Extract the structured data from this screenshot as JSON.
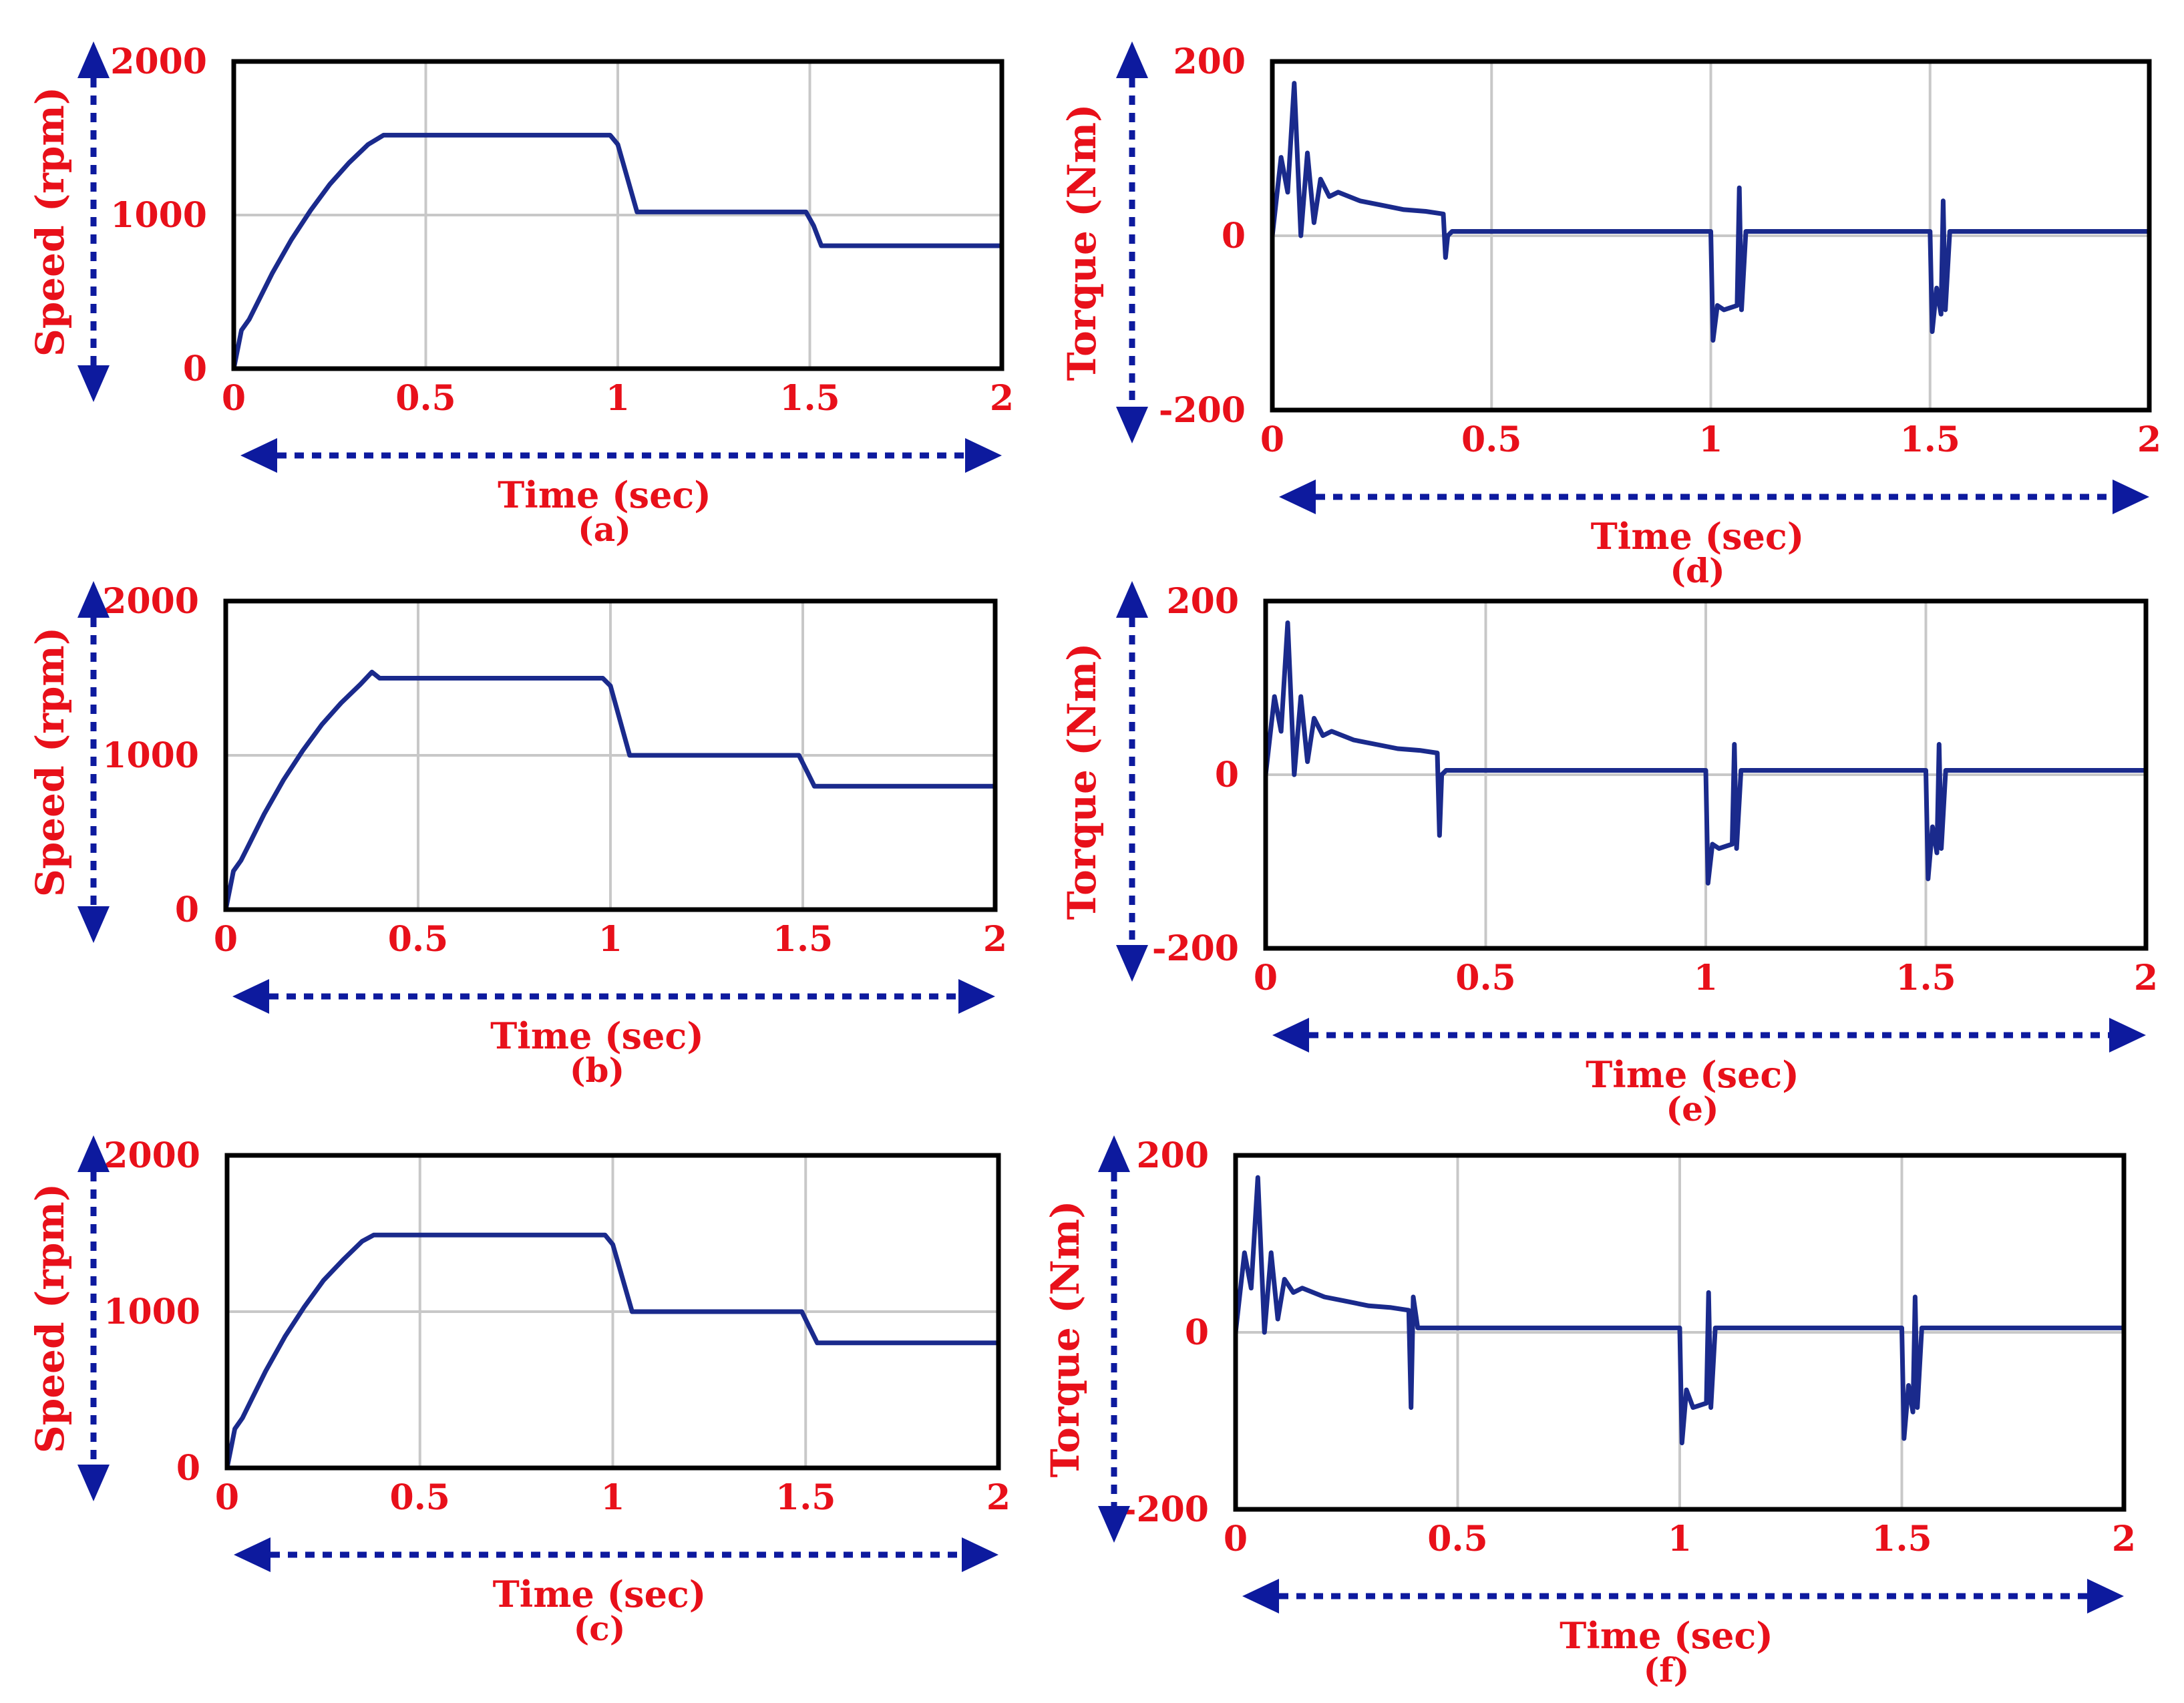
{
  "colors": {
    "trace": "#1a2a8c",
    "arrow": "#0d1a9e",
    "text": "#e8101a",
    "grid": "#c8c8c8",
    "frame": "#000000"
  },
  "chart_data": [
    {
      "panel": "(a)",
      "type": "line",
      "ylabel": "Speed (rpm)",
      "xlabel": "Time (sec)",
      "xlim": [
        0,
        2
      ],
      "ylim": [
        0,
        2000
      ],
      "xticks": [
        "0",
        "0.5",
        "1",
        "1.5",
        "2"
      ],
      "yticks": [
        "0",
        "1000",
        "2000"
      ],
      "series": [
        {
          "name": "speed",
          "x": [
            0,
            0.02,
            0.04,
            0.06,
            0.1,
            0.15,
            0.2,
            0.25,
            0.3,
            0.35,
            0.39,
            0.98,
            1.0,
            1.05,
            1.49,
            1.51,
            1.53,
            2.0
          ],
          "y": [
            0,
            250,
            320,
            420,
            620,
            840,
            1030,
            1200,
            1340,
            1460,
            1520,
            1520,
            1460,
            1020,
            1020,
            930,
            800,
            800
          ]
        }
      ]
    },
    {
      "panel": "(b)",
      "type": "line",
      "ylabel": "Speed (rpm)",
      "xlabel": "Time (sec)",
      "xlim": [
        0,
        2
      ],
      "ylim": [
        0,
        2000
      ],
      "xticks": [
        "0",
        "0.5",
        "1",
        "1.5",
        "2"
      ],
      "yticks": [
        "0",
        "1000",
        "2000"
      ],
      "series": [
        {
          "name": "speed",
          "x": [
            0,
            0.02,
            0.04,
            0.06,
            0.1,
            0.15,
            0.2,
            0.25,
            0.3,
            0.35,
            0.38,
            0.4,
            0.98,
            1.0,
            1.05,
            1.49,
            1.51,
            1.53,
            2.0
          ],
          "y": [
            0,
            250,
            320,
            420,
            620,
            840,
            1030,
            1200,
            1340,
            1460,
            1540,
            1500,
            1500,
            1450,
            1000,
            1000,
            900,
            800,
            800
          ]
        }
      ]
    },
    {
      "panel": "(c)",
      "type": "line",
      "ylabel": "Speed (rpm)",
      "xlabel": "Time (sec)",
      "xlim": [
        0,
        2
      ],
      "ylim": [
        0,
        2000
      ],
      "xticks": [
        "0",
        "0.5",
        "1",
        "1.5",
        "2"
      ],
      "yticks": [
        "0",
        "1000",
        "2000"
      ],
      "series": [
        {
          "name": "speed",
          "x": [
            0,
            0.02,
            0.04,
            0.06,
            0.1,
            0.15,
            0.2,
            0.25,
            0.3,
            0.35,
            0.38,
            0.98,
            1.0,
            1.05,
            1.49,
            1.51,
            1.53,
            2.0
          ],
          "y": [
            0,
            250,
            320,
            420,
            620,
            840,
            1030,
            1200,
            1330,
            1450,
            1490,
            1490,
            1430,
            1000,
            1000,
            900,
            800,
            800
          ]
        }
      ]
    },
    {
      "panel": "(d)",
      "type": "line",
      "ylabel": "Torque (Nm)",
      "xlabel": "Time (sec)",
      "xlim": [
        0,
        2
      ],
      "ylim": [
        -200,
        200
      ],
      "xticks": [
        "0",
        "0.5",
        "1",
        "1.5",
        "2"
      ],
      "yticks": [
        "-200",
        "0",
        "200"
      ],
      "series": [
        {
          "name": "torque",
          "x": [
            0,
            0.02,
            0.035,
            0.05,
            0.065,
            0.08,
            0.095,
            0.11,
            0.13,
            0.15,
            0.2,
            0.25,
            0.3,
            0.35,
            0.39,
            0.395,
            0.4,
            0.41,
            1.0,
            1.005,
            1.015,
            1.03,
            1.06,
            1.065,
            1.07,
            1.08,
            1.5,
            1.505,
            1.515,
            1.525,
            1.53,
            1.535,
            1.545,
            2.0
          ],
          "y": [
            0,
            90,
            50,
            175,
            0,
            95,
            15,
            65,
            45,
            50,
            40,
            35,
            30,
            28,
            25,
            -25,
            0,
            5,
            5,
            -120,
            -80,
            -85,
            -80,
            55,
            -85,
            5,
            5,
            -110,
            -60,
            -90,
            40,
            -85,
            5,
            5
          ]
        }
      ]
    },
    {
      "panel": "(e)",
      "type": "line",
      "ylabel": "Torque (Nm)",
      "xlabel": "Time (sec)",
      "xlim": [
        0,
        2
      ],
      "ylim": [
        -200,
        200
      ],
      "xticks": [
        "0",
        "0.5",
        "1",
        "1.5",
        "2"
      ],
      "yticks": [
        "-200",
        "0",
        "200"
      ],
      "series": [
        {
          "name": "torque",
          "x": [
            0,
            0.02,
            0.035,
            0.05,
            0.065,
            0.08,
            0.095,
            0.11,
            0.13,
            0.15,
            0.2,
            0.25,
            0.3,
            0.35,
            0.39,
            0.395,
            0.4,
            0.41,
            1.0,
            1.005,
            1.015,
            1.03,
            1.06,
            1.065,
            1.07,
            1.08,
            1.5,
            1.505,
            1.515,
            1.525,
            1.53,
            1.535,
            1.545,
            2.0
          ],
          "y": [
            0,
            90,
            50,
            175,
            0,
            90,
            15,
            65,
            45,
            50,
            40,
            35,
            30,
            28,
            25,
            -70,
            0,
            5,
            5,
            -125,
            -80,
            -85,
            -80,
            35,
            -85,
            5,
            5,
            -120,
            -60,
            -90,
            35,
            -85,
            5,
            5
          ]
        }
      ]
    },
    {
      "panel": "(f)",
      "type": "line",
      "ylabel": "Torque (Nm)",
      "xlabel": "Time (sec)",
      "xlim": [
        0,
        2
      ],
      "ylim": [
        -200,
        200
      ],
      "xticks": [
        "0",
        "0.5",
        "1",
        "1.5",
        "2"
      ],
      "yticks": [
        "-200",
        "0",
        "200"
      ],
      "series": [
        {
          "name": "torque",
          "x": [
            0,
            0.02,
            0.035,
            0.05,
            0.065,
            0.08,
            0.095,
            0.11,
            0.13,
            0.15,
            0.2,
            0.25,
            0.3,
            0.35,
            0.39,
            0.395,
            0.4,
            0.41,
            1.0,
            1.005,
            1.015,
            1.03,
            1.06,
            1.065,
            1.07,
            1.08,
            1.5,
            1.505,
            1.515,
            1.525,
            1.53,
            1.535,
            1.545,
            2.0
          ],
          "y": [
            0,
            90,
            50,
            175,
            0,
            90,
            15,
            60,
            45,
            50,
            40,
            35,
            30,
            28,
            25,
            -85,
            40,
            5,
            5,
            -125,
            -65,
            -85,
            -80,
            45,
            -85,
            5,
            5,
            -120,
            -60,
            -90,
            40,
            -85,
            5,
            5
          ]
        }
      ]
    }
  ]
}
